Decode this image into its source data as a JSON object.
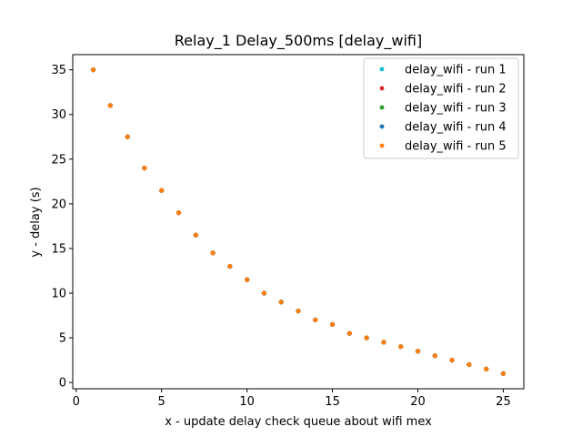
{
  "chart_data": {
    "type": "scatter",
    "title": "Relay_1 Delay_500ms [delay_wifi]",
    "xlabel": "x - update delay check queue about wifi mex",
    "ylabel": "y - delay (s)",
    "xlim": [
      -0.2,
      26.2
    ],
    "ylim": [
      -0.7,
      36.7
    ],
    "xticks": [
      0,
      5,
      10,
      15,
      20,
      25
    ],
    "yticks": [
      0,
      5,
      10,
      15,
      20,
      25,
      30,
      35
    ],
    "grid": false,
    "legend_position": "top-right",
    "x": [
      1,
      2,
      3,
      4,
      5,
      6,
      7,
      8,
      9,
      10,
      11,
      12,
      13,
      14,
      15,
      16,
      17,
      18,
      19,
      20,
      21,
      22,
      23,
      24,
      25
    ],
    "series": [
      {
        "name": "delay_wifi - run 1",
        "color": "#17becf",
        "values": [
          35,
          31,
          27.5,
          24,
          21.5,
          19,
          16.5,
          14.5,
          13,
          11.5,
          10,
          9,
          8,
          7,
          6.5,
          5.5,
          5,
          4.5,
          4,
          3.5,
          3,
          2.5,
          2,
          1.5,
          1
        ]
      },
      {
        "name": "delay_wifi - run 2",
        "color": "#d62728",
        "values": [
          35,
          31,
          27.5,
          24,
          21.5,
          19,
          16.5,
          14.5,
          13,
          11.5,
          10,
          9,
          8,
          7,
          6.5,
          5.5,
          5,
          4.5,
          4,
          3.5,
          3,
          2.5,
          2,
          1.5,
          1
        ]
      },
      {
        "name": "delay_wifi - run 3",
        "color": "#2ca02c",
        "values": [
          35,
          31,
          27.5,
          24,
          21.5,
          19,
          16.5,
          14.5,
          13,
          11.5,
          10,
          9,
          8,
          7,
          6.5,
          5.5,
          5,
          4.5,
          4,
          3.5,
          3,
          2.5,
          2,
          1.5,
          1
        ]
      },
      {
        "name": "delay_wifi - run 4",
        "color": "#1f77b4",
        "values": [
          35,
          31,
          27.5,
          24,
          21.5,
          19,
          16.5,
          14.5,
          13,
          11.5,
          10,
          9,
          8,
          7,
          6.5,
          5.5,
          5,
          4.5,
          4,
          3.5,
          3,
          2.5,
          2,
          1.5,
          1
        ]
      },
      {
        "name": "delay_wifi - run 5",
        "color": "#ff7f0e",
        "values": [
          35,
          31,
          27.5,
          24,
          21.5,
          19,
          16.5,
          14.5,
          13,
          11.5,
          10,
          9,
          8,
          7,
          6.5,
          5.5,
          5,
          4.5,
          4,
          3.5,
          3,
          2.5,
          2,
          1.5,
          1
        ]
      }
    ]
  }
}
